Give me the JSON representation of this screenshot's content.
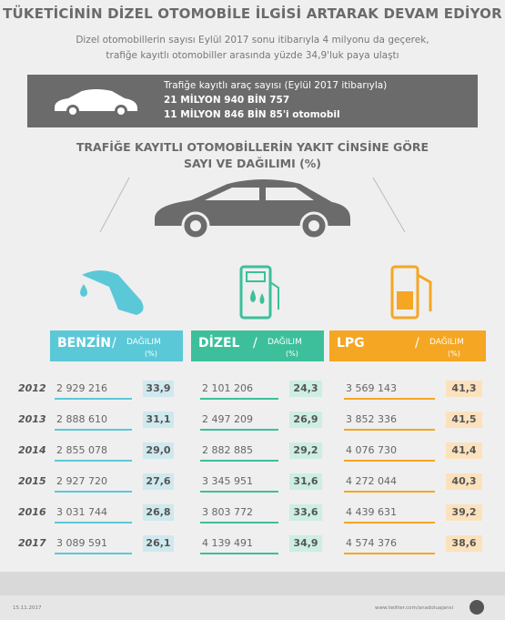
{
  "header": {
    "title": "TÜKETİCİNİN DİZEL OTOMOBİLE İLGİSİ ARTARAK DEVAM EDİYOR",
    "subtitle": [
      "Dizel otomobillerin sayısı Eylül 2017 sonu itibarıyla 4 milyonu da geçerek,",
      "trafiğe kayıtlı otomobiller arasında yüzde 34,9'luk paya ulaştı"
    ]
  },
  "info_box": {
    "lines": [
      "Trafiğe kayıtlı araç sayısı (Eylül 2017 itibarıyla)",
      "21 MİLYON 940 BİN 757",
      "11 MİLYON 846 BİN 85'i otomobil"
    ]
  },
  "section_title": [
    "TRAFİĞE KAYITLI OTOMOBİLLERİN YAKIT CİNSİNE GÖRE",
    "SAYI VE DAĞILIMI (%)"
  ],
  "table": {
    "columns": [
      {
        "name": "BENZİN",
        "separator": "/",
        "label": "DAĞILIM",
        "unit": "(%)"
      },
      {
        "name": "DİZEL",
        "separator": "/",
        "label": "DAĞILIM",
        "unit": "(%)"
      },
      {
        "name": "LPG",
        "separator": "/",
        "label": "DAĞILIM",
        "unit": "(%)"
      }
    ],
    "rows": [
      [
        "2012",
        "2 929 216",
        "33,9",
        "2 101 206",
        "24,3",
        "3 569 143",
        "41,3"
      ],
      [
        "2013",
        "2 888 610",
        "31,1",
        "2 497 209",
        "26,9",
        "3 852 336",
        "41,5"
      ],
      [
        "2014",
        "2 855 078",
        "29,0",
        "2 882 885",
        "29,2",
        "4 076 730",
        "41,4"
      ],
      [
        "2015",
        "2 927 720",
        "27,6",
        "3 345 951",
        "31,6",
        "4 272 044",
        "40,3"
      ],
      [
        "2016",
        "3 031 744",
        "26,8",
        "3 803 772",
        "33,6",
        "4 439 631",
        "39,2"
      ],
      [
        "2017",
        "3 089 591",
        "26,1",
        "4 139 491",
        "34,9",
        "4 574 376",
        "38,6"
      ]
    ]
  },
  "footer": {
    "date": "15.11.2017",
    "source": "www.twitter.com/anadoluajansi"
  }
}
